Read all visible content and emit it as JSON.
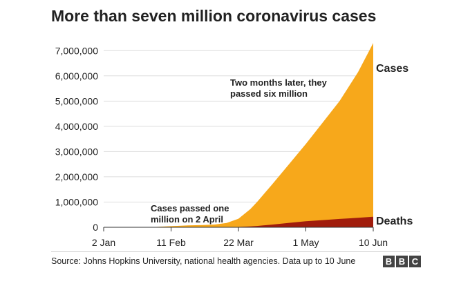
{
  "chart_data": {
    "type": "area",
    "title": "More than seven million coronavirus cases",
    "xlabel": "",
    "ylabel": "",
    "x_ticks": [
      "2 Jan",
      "11 Feb",
      "22 Mar",
      "1 May",
      "10 Jun"
    ],
    "y_ticks": [
      "0",
      "1,000,000",
      "2,000,000",
      "3,000,000",
      "4,000,000",
      "5,000,000",
      "6,000,000",
      "7,000,000"
    ],
    "ylim": [
      0,
      7500000
    ],
    "xlim": [
      "2020-01-02",
      "2020-06-10"
    ],
    "grid": "horizontal",
    "x": [
      "2020-01-02",
      "2020-01-22",
      "2020-02-01",
      "2020-02-11",
      "2020-02-21",
      "2020-03-01",
      "2020-03-08",
      "2020-03-15",
      "2020-03-22",
      "2020-03-29",
      "2020-04-02",
      "2020-04-11",
      "2020-04-21",
      "2020-05-01",
      "2020-05-11",
      "2020-05-21",
      "2020-06-01",
      "2020-06-10"
    ],
    "series": [
      {
        "name": "Cases",
        "color": "#f7a81b",
        "values": [
          0,
          580,
          12000,
          43000,
          76000,
          88000,
          110000,
          170000,
          340000,
          720000,
          1000000,
          1700000,
          2500000,
          3300000,
          4150000,
          5000000,
          6150000,
          7300000
        ]
      },
      {
        "name": "Deaths",
        "color": "#a01c0c",
        "values": [
          0,
          17,
          260,
          1000,
          2250,
          3000,
          3500,
          6500,
          15000,
          34000,
          53000,
          108000,
          176000,
          237000,
          286000,
          331000,
          375000,
          415000
        ]
      }
    ],
    "annotations": [
      {
        "lines": [
          "Two months later, they",
          "passed six million"
        ]
      },
      {
        "lines": [
          "Cases passed one",
          "million on 2 April"
        ]
      }
    ]
  },
  "source": "Source: Johns Hopkins University, national health agencies. Data up to 10 June",
  "logo": [
    "B",
    "B",
    "C"
  ]
}
